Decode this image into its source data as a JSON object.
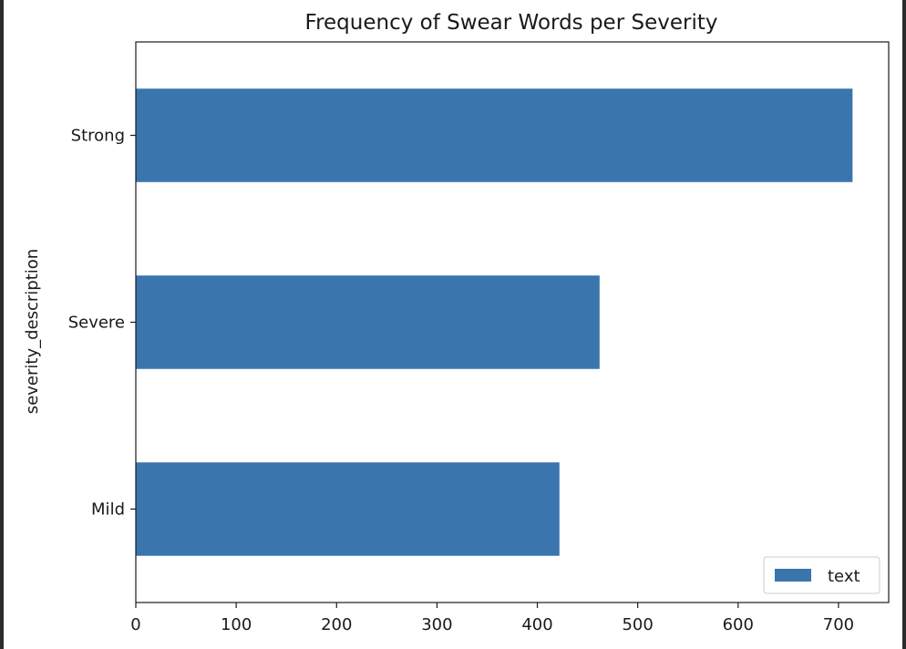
{
  "chart_data": {
    "type": "bar",
    "orientation": "horizontal",
    "title": "Frequency of Swear Words per Severity",
    "xlabel": "",
    "ylabel": "severity_description",
    "categories": [
      "Mild",
      "Severe",
      "Strong"
    ],
    "series": [
      {
        "name": "text",
        "values": [
          422,
          462,
          714
        ]
      }
    ],
    "xlim": [
      0,
      750
    ],
    "xticks": [
      0,
      100,
      200,
      300,
      400,
      500,
      600,
      700
    ],
    "grid": false,
    "legend": "bottom-right",
    "colors": {
      "bar": "#3a75ae",
      "axis": "#1a1a1a",
      "background": "#ffffff"
    }
  }
}
